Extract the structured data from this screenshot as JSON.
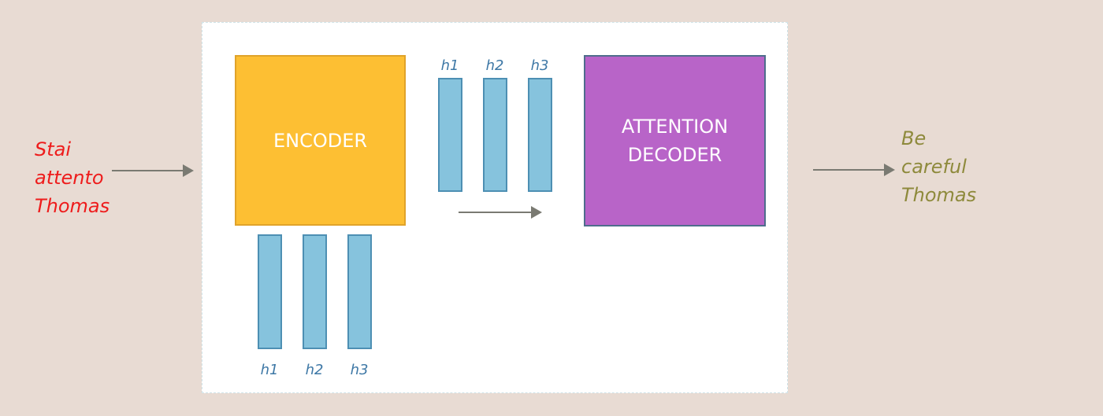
{
  "diagram": {
    "encoder_label": "ENCODER",
    "decoder_label": "ATTENTION DECODER",
    "input_text": "Stai\nattento\nThomas",
    "output_text": "Be\ncareful\nThomas",
    "encoder_states": [
      "h1",
      "h2",
      "h3"
    ],
    "decoder_states": [
      "h1",
      "h2",
      "h3"
    ]
  },
  "colors": {
    "encoder_fill": "#fdbf33",
    "decoder_fill": "#b864c8",
    "state_fill": "#86c3dd",
    "input_text": "#ee1c1c",
    "output_text": "#8e8a3c",
    "arrow": "#7a7a72"
  }
}
